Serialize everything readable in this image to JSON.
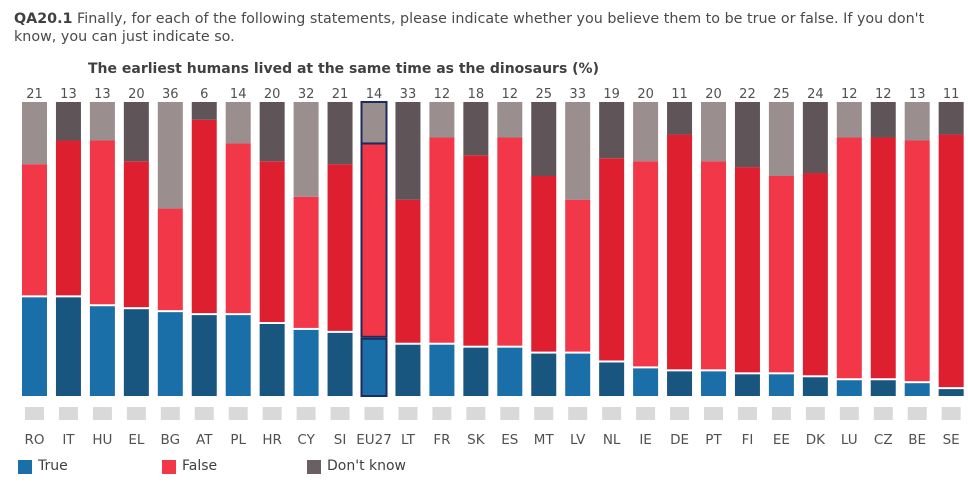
{
  "question": {
    "id": "QA20.1",
    "text": "Finally, for each of the following statements, please indicate whether you believe them to be true or false. If you don't know, you can just indicate so."
  },
  "chart_data": {
    "type": "bar",
    "stacked": true,
    "title": "The earliest humans lived at the same time as the dinosaurs  (%)",
    "categories": [
      "RO",
      "IT",
      "HU",
      "EL",
      "BG",
      "AT",
      "PL",
      "HR",
      "CY",
      "SI",
      "EU27",
      "LT",
      "FR",
      "SK",
      "ES",
      "MT",
      "LV",
      "NL",
      "IE",
      "DE",
      "PT",
      "FI",
      "EE",
      "DK",
      "LU",
      "CZ",
      "BE",
      "SE"
    ],
    "highlight_category": "EU27",
    "series": [
      {
        "name": "True",
        "values": [
          34,
          34,
          31,
          30,
          29,
          28,
          28,
          25,
          23,
          22,
          20,
          18,
          18,
          17,
          17,
          15,
          15,
          12,
          10,
          9,
          9,
          8,
          8,
          7,
          6,
          6,
          5,
          3
        ],
        "colors": [
          "#1a6fa8",
          "#19567f"
        ]
      },
      {
        "name": "False",
        "values": [
          45,
          53,
          56,
          50,
          35,
          66,
          58,
          55,
          45,
          57,
          66,
          49,
          70,
          65,
          71,
          60,
          52,
          69,
          70,
          80,
          71,
          70,
          67,
          69,
          82,
          82,
          82,
          86
        ],
        "colors": [
          "#f23848",
          "#dd1f30"
        ]
      },
      {
        "name": "Don't know",
        "values": [
          21,
          13,
          13,
          20,
          36,
          6,
          14,
          20,
          32,
          21,
          14,
          33,
          12,
          18,
          12,
          25,
          33,
          19,
          20,
          11,
          20,
          22,
          25,
          24,
          12,
          12,
          13,
          11
        ],
        "colors": [
          "#9b8e8f",
          "#5f5457"
        ]
      }
    ],
    "ylim": [
      0,
      100
    ],
    "legend_position": "bottom-left",
    "grid": false
  },
  "legend": [
    {
      "label": "True",
      "color": "#1a6fa8"
    },
    {
      "label": "False",
      "color": "#f23848"
    },
    {
      "label": "Don't know",
      "color": "#6a5f62"
    }
  ]
}
